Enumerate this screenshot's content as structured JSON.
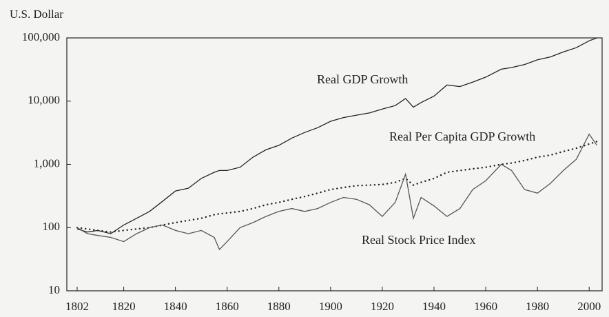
{
  "chart_data": {
    "type": "line",
    "y_axis_label": "U.S. Dollar",
    "log_scale": true,
    "x": [
      1802,
      1806,
      1810,
      1815,
      1820,
      1825,
      1830,
      1835,
      1840,
      1845,
      1850,
      1855,
      1857,
      1860,
      1865,
      1870,
      1875,
      1880,
      1885,
      1890,
      1895,
      1900,
      1905,
      1910,
      1915,
      1920,
      1925,
      1929,
      1932,
      1935,
      1940,
      1945,
      1950,
      1955,
      1960,
      1966,
      1970,
      1975,
      1980,
      1985,
      1990,
      1995,
      2000,
      2003
    ],
    "series": [
      {
        "name": "Real GDP Growth",
        "color": "#222222",
        "style": "solid",
        "values": [
          95,
          85,
          90,
          80,
          110,
          140,
          180,
          260,
          380,
          420,
          600,
          750,
          800,
          800,
          900,
          1300,
          1700,
          2000,
          2600,
          3200,
          3800,
          4800,
          5500,
          6000,
          6500,
          7500,
          8500,
          11000,
          8000,
          9500,
          12000,
          18000,
          17000,
          20000,
          24000,
          32000,
          34000,
          38000,
          45000,
          50000,
          60000,
          70000,
          90000,
          100000
        ]
      },
      {
        "name": "Real Per Capita GDP Growth",
        "color": "#222222",
        "style": "dotted",
        "values": [
          100,
          95,
          90,
          85,
          90,
          95,
          100,
          110,
          120,
          130,
          140,
          160,
          165,
          170,
          180,
          200,
          230,
          250,
          280,
          310,
          350,
          400,
          430,
          460,
          470,
          480,
          520,
          600,
          470,
          520,
          600,
          750,
          800,
          850,
          900,
          1000,
          1050,
          1150,
          1300,
          1400,
          1600,
          1800,
          2100,
          2300
        ]
      },
      {
        "name": "Real Stock Price Index",
        "color": "#555555",
        "style": "solid",
        "values": [
          100,
          80,
          75,
          70,
          60,
          80,
          100,
          110,
          90,
          80,
          90,
          70,
          45,
          60,
          100,
          120,
          150,
          180,
          200,
          180,
          200,
          250,
          300,
          280,
          230,
          150,
          250,
          700,
          140,
          300,
          220,
          150,
          200,
          400,
          550,
          1000,
          800,
          400,
          350,
          500,
          800,
          1200,
          3000,
          2000
        ]
      }
    ],
    "xlim": [
      1798,
      2005
    ],
    "xticks": [
      1802,
      1820,
      1840,
      1860,
      1880,
      1900,
      1920,
      1940,
      1960,
      1980,
      2000
    ],
    "ylim": [
      10,
      100000
    ],
    "yticks": [
      10,
      100,
      {
        "value": 1000,
        "label": "1,000"
      },
      {
        "value": 10000,
        "label": "10,000"
      },
      {
        "value": 100000,
        "label": "100,000"
      }
    ]
  }
}
